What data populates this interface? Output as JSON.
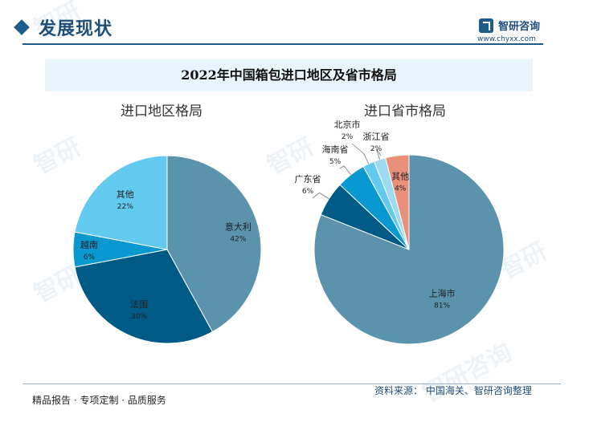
{
  "header": {
    "title": "发展现状",
    "logo_name": "智研咨询",
    "logo_url": "www.chyxx.com"
  },
  "chart_data": [
    {
      "type": "pie",
      "title": "2022年中国箱包进口地区及省市格局",
      "subtitle": "进口地区格局",
      "slices": [
        {
          "label": "意大利",
          "value": 42,
          "value_label": "42%",
          "color": "#5b93ad"
        },
        {
          "label": "法国",
          "value": 30,
          "value_label": "30%",
          "color": "#005a86"
        },
        {
          "label": "越南",
          "value": 6,
          "value_label": "6%",
          "color": "#0a98d0"
        },
        {
          "label": "其他",
          "value": 22,
          "value_label": "22%",
          "color": "#63caef"
        }
      ]
    },
    {
      "type": "pie",
      "subtitle": "进口省市格局",
      "slices": [
        {
          "label": "上海市",
          "value": 81,
          "value_label": "81%",
          "color": "#5b93ad"
        },
        {
          "label": "广东省",
          "value": 6,
          "value_label": "6%",
          "color": "#005a86"
        },
        {
          "label": "海南省",
          "value": 5,
          "value_label": "5%",
          "color": "#0a98d0"
        },
        {
          "label": "北京市",
          "value": 2,
          "value_label": "2%",
          "color": "#63caef"
        },
        {
          "label": "浙江省",
          "value": 2,
          "value_label": "2%",
          "color": "#9edaf0"
        },
        {
          "label": "其他",
          "value": 4,
          "value_label": "4%",
          "color": "#e8907a"
        }
      ]
    }
  ],
  "footer": {
    "tagline": "精品报告 · 专项定制 · 品质服务",
    "source": "资料来源： 中国海关、智研咨询整理"
  }
}
